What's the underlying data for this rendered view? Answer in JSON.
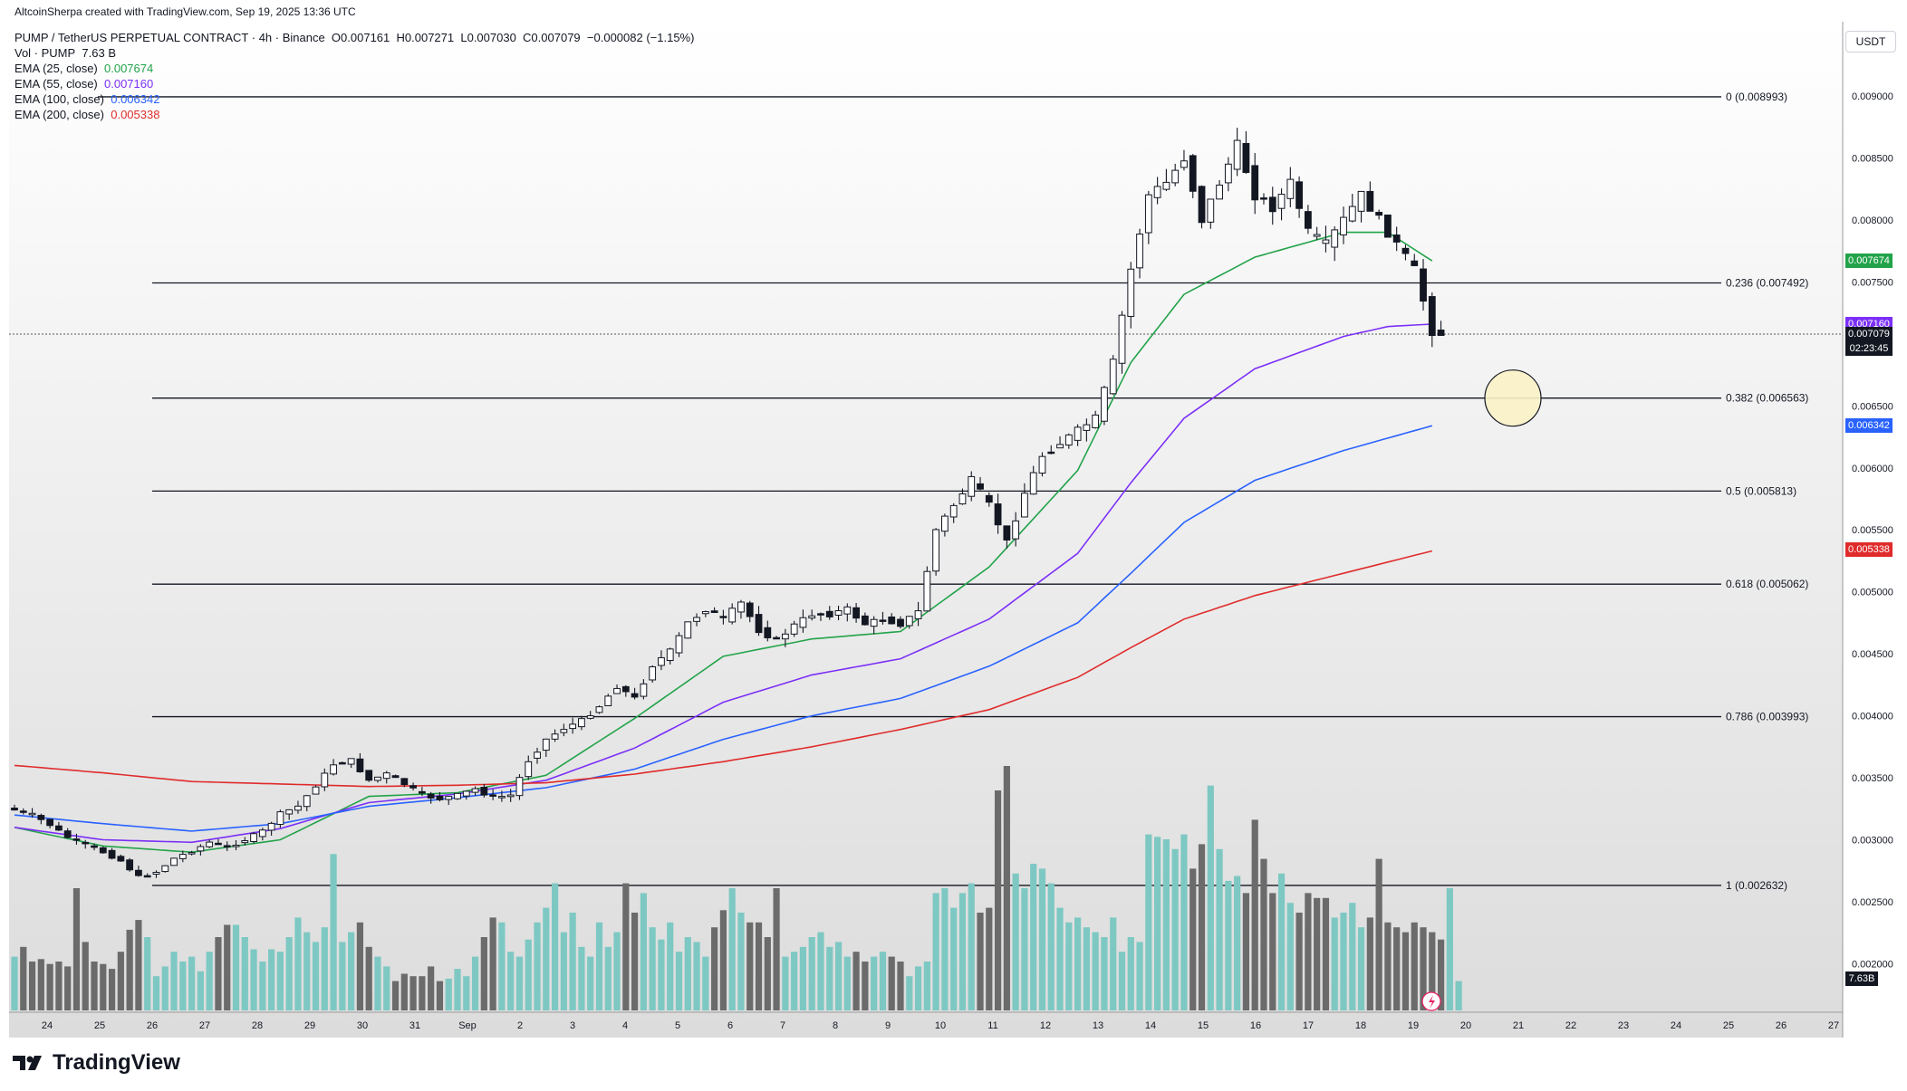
{
  "header": {
    "credit": "AltcoinSherpa created with TradingView.com, Sep 19, 2025 13:36 UTC",
    "symbol": "PUMP / TetherUS PERPETUAL CONTRACT · 4h · Binance",
    "open": "O0.007161",
    "high": "H0.007271",
    "low": "L0.007030",
    "close": "C0.007079",
    "change": "−0.000082 (−1.15%)",
    "volume_label": "Vol · PUMP",
    "volume_value": "7.63 B"
  },
  "indicators": [
    {
      "label": "EMA (25, close)",
      "value": "0.007674",
      "color": "#22a34a"
    },
    {
      "label": "EMA (55, close)",
      "value": "0.007160",
      "color": "#7b2ff7"
    },
    {
      "label": "EMA (100, close)",
      "value": "0.006342",
      "color": "#2962ff"
    },
    {
      "label": "EMA (200, close)",
      "value": "0.005338",
      "color": "#e02b2b"
    }
  ],
  "axis": {
    "currency": "USDT",
    "countdown": "02:23:45",
    "volume_tag": "7.63B"
  },
  "brand": {
    "name": "TradingView"
  },
  "chart_data": {
    "type": "candlestick",
    "ylim": [
      0.0023,
      0.0092
    ],
    "y_ticks": [
      "0.009000",
      "0.008500",
      "0.008000",
      "0.007500",
      "0.006500",
      "0.006000",
      "0.005500",
      "0.005000",
      "0.004500",
      "0.004000",
      "0.003500",
      "0.003000",
      "0.002500",
      "0.002000"
    ],
    "x_ticks": [
      "24",
      "25",
      "26",
      "27",
      "28",
      "29",
      "30",
      "31",
      "Sep",
      "2",
      "3",
      "4",
      "5",
      "6",
      "7",
      "8",
      "9",
      "10",
      "11",
      "12",
      "13",
      "14",
      "15",
      "16",
      "17",
      "18",
      "19",
      "20",
      "21",
      "22",
      "23",
      "24",
      "25",
      "26",
      "27"
    ],
    "fib_levels": [
      {
        "label": "0 (0.008993)",
        "price": 0.008993
      },
      {
        "label": "0.236 (0.007492)",
        "price": 0.007492
      },
      {
        "label": "0.382 (0.006563)",
        "price": 0.006563
      },
      {
        "label": "0.5 (0.005813)",
        "price": 0.005813
      },
      {
        "label": "0.618 (0.005062)",
        "price": 0.005062
      },
      {
        "label": "0.786 (0.003993)",
        "price": 0.003993
      },
      {
        "label": "1 (0.002632)",
        "price": 0.002632
      }
    ],
    "last_price": 0.007079,
    "price_tags": [
      {
        "price": 0.007674,
        "label": "0.007674",
        "color": "#22a34a"
      },
      {
        "price": 0.00716,
        "label": "0.007160",
        "color": "#7b2ff7"
      },
      {
        "price": 0.007079,
        "label": "0.007079",
        "color": "#131722"
      },
      {
        "price": 0.006342,
        "label": "0.006342",
        "color": "#2962ff"
      },
      {
        "price": 0.005338,
        "label": "0.005338",
        "color": "#e02b2b"
      }
    ],
    "target_circle_price": 0.006563,
    "price_keyframes": [
      [
        0,
        0.00324
      ],
      [
        2,
        0.0032
      ],
      [
        4,
        0.00312
      ],
      [
        6,
        0.00302
      ],
      [
        8,
        0.00296
      ],
      [
        10,
        0.0029
      ],
      [
        12,
        0.00283
      ],
      [
        14,
        0.0027
      ],
      [
        16,
        0.00274
      ],
      [
        18,
        0.00285
      ],
      [
        20,
        0.00291
      ],
      [
        22,
        0.00298
      ],
      [
        24,
        0.00294
      ],
      [
        26,
        0.003
      ],
      [
        28,
        0.00307
      ],
      [
        30,
        0.00321
      ],
      [
        32,
        0.00327
      ],
      [
        34,
        0.00344
      ],
      [
        36,
        0.00361
      ],
      [
        38,
        0.00364
      ],
      [
        40,
        0.00348
      ],
      [
        42,
        0.00353
      ],
      [
        44,
        0.00345
      ],
      [
        46,
        0.00336
      ],
      [
        48,
        0.00333
      ],
      [
        50,
        0.00336
      ],
      [
        52,
        0.00341
      ],
      [
        54,
        0.00334
      ],
      [
        56,
        0.00336
      ],
      [
        58,
        0.00364
      ],
      [
        60,
        0.00381
      ],
      [
        62,
        0.0039
      ],
      [
        64,
        0.00396
      ],
      [
        66,
        0.00408
      ],
      [
        68,
        0.00424
      ],
      [
        70,
        0.00414
      ],
      [
        72,
        0.00441
      ],
      [
        74,
        0.00452
      ],
      [
        76,
        0.00475
      ],
      [
        78,
        0.00486
      ],
      [
        80,
        0.00478
      ],
      [
        82,
        0.00491
      ],
      [
        84,
        0.00469
      ],
      [
        86,
        0.00461
      ],
      [
        88,
        0.00473
      ],
      [
        90,
        0.00482
      ],
      [
        92,
        0.00482
      ],
      [
        94,
        0.00486
      ],
      [
        96,
        0.00474
      ],
      [
        98,
        0.00478
      ],
      [
        100,
        0.00474
      ],
      [
        102,
        0.00484
      ],
      [
        104,
        0.0055
      ],
      [
        106,
        0.0057
      ],
      [
        108,
        0.0059
      ],
      [
        110,
        0.0057
      ],
      [
        112,
        0.0054
      ],
      [
        114,
        0.0058
      ],
      [
        116,
        0.0061
      ],
      [
        118,
        0.0062
      ],
      [
        120,
        0.0063
      ],
      [
        122,
        0.0064
      ],
      [
        124,
        0.00685
      ],
      [
        126,
        0.0076
      ],
      [
        128,
        0.0082
      ],
      [
        130,
        0.0083
      ],
      [
        132,
        0.0085
      ],
      [
        134,
        0.008
      ],
      [
        136,
        0.0083
      ],
      [
        138,
        0.0086
      ],
      [
        140,
        0.0082
      ],
      [
        142,
        0.0081
      ],
      [
        144,
        0.0083
      ],
      [
        146,
        0.0079
      ],
      [
        148,
        0.0078
      ],
      [
        150,
        0.008
      ],
      [
        152,
        0.0082
      ],
      [
        154,
        0.008
      ],
      [
        156,
        0.0078
      ],
      [
        158,
        0.0076
      ],
      [
        160,
        0.0071
      ],
      [
        161,
        0.00708
      ]
    ],
    "ema_series": [
      {
        "name": "EMA (25, close)",
        "color": "#22a34a",
        "points": [
          [
            0,
            0.0031
          ],
          [
            10,
            0.00295
          ],
          [
            20,
            0.0029
          ],
          [
            30,
            0.003
          ],
          [
            40,
            0.00335
          ],
          [
            50,
            0.00338
          ],
          [
            60,
            0.00352
          ],
          [
            70,
            0.00398
          ],
          [
            80,
            0.00448
          ],
          [
            90,
            0.00462
          ],
          [
            100,
            0.00468
          ],
          [
            110,
            0.0052
          ],
          [
            120,
            0.00598
          ],
          [
            126,
            0.00685
          ],
          [
            132,
            0.0074
          ],
          [
            140,
            0.0077
          ],
          [
            145,
            0.0078
          ],
          [
            150,
            0.0079
          ],
          [
            155,
            0.0079
          ],
          [
            160,
            0.00767
          ]
        ]
      },
      {
        "name": "EMA (55, close)",
        "color": "#7b2ff7",
        "points": [
          [
            0,
            0.0031
          ],
          [
            10,
            0.003
          ],
          [
            20,
            0.00298
          ],
          [
            30,
            0.00309
          ],
          [
            40,
            0.0033
          ],
          [
            50,
            0.00337
          ],
          [
            60,
            0.00348
          ],
          [
            70,
            0.00374
          ],
          [
            80,
            0.00411
          ],
          [
            90,
            0.00433
          ],
          [
            100,
            0.00446
          ],
          [
            110,
            0.00478
          ],
          [
            120,
            0.00531
          ],
          [
            126,
            0.00588
          ],
          [
            132,
            0.0064
          ],
          [
            140,
            0.0068
          ],
          [
            150,
            0.00706
          ],
          [
            155,
            0.00714
          ],
          [
            160,
            0.00716
          ]
        ]
      },
      {
        "name": "EMA (100, close)",
        "color": "#2962ff",
        "points": [
          [
            0,
            0.0032
          ],
          [
            10,
            0.00313
          ],
          [
            20,
            0.00307
          ],
          [
            30,
            0.00313
          ],
          [
            40,
            0.00327
          ],
          [
            50,
            0.00334
          ],
          [
            60,
            0.00342
          ],
          [
            70,
            0.00357
          ],
          [
            80,
            0.00381
          ],
          [
            90,
            0.004
          ],
          [
            100,
            0.00414
          ],
          [
            110,
            0.0044
          ],
          [
            120,
            0.00475
          ],
          [
            126,
            0.00515
          ],
          [
            132,
            0.00556
          ],
          [
            140,
            0.0059
          ],
          [
            150,
            0.00614
          ],
          [
            160,
            0.00634
          ]
        ]
      },
      {
        "name": "EMA (200, close)",
        "color": "#e02b2b",
        "points": [
          [
            0,
            0.0036
          ],
          [
            10,
            0.00354
          ],
          [
            20,
            0.00347
          ],
          [
            30,
            0.00345
          ],
          [
            40,
            0.00343
          ],
          [
            50,
            0.00344
          ],
          [
            60,
            0.00346
          ],
          [
            70,
            0.00353
          ],
          [
            80,
            0.00363
          ],
          [
            90,
            0.00375
          ],
          [
            100,
            0.00389
          ],
          [
            110,
            0.00405
          ],
          [
            120,
            0.00431
          ],
          [
            126,
            0.00455
          ],
          [
            132,
            0.00478
          ],
          [
            140,
            0.00497
          ],
          [
            150,
            0.00515
          ],
          [
            160,
            0.00533
          ]
        ]
      }
    ],
    "volume_heights": [
      0.22,
      0.26,
      0.2,
      0.21,
      0.19,
      0.2,
      0.18,
      0.5,
      0.28,
      0.2,
      0.19,
      0.17,
      0.24,
      0.33,
      0.37,
      0.3,
      0.14,
      0.18,
      0.24,
      0.2,
      0.22,
      0.16,
      0.24,
      0.3,
      0.35,
      0.35,
      0.3,
      0.25,
      0.2,
      0.25,
      0.24,
      0.3,
      0.38,
      0.32,
      0.28,
      0.34,
      0.64,
      0.28,
      0.32,
      0.36,
      0.26,
      0.22,
      0.18,
      0.12,
      0.15,
      0.14,
      0.14,
      0.18,
      0.12,
      0.13,
      0.17,
      0.14,
      0.22,
      0.3,
      0.38,
      0.36,
      0.24,
      0.22,
      0.29,
      0.36,
      0.42,
      0.52,
      0.32,
      0.4,
      0.26,
      0.22,
      0.36,
      0.26,
      0.32,
      0.52,
      0.4,
      0.48,
      0.34,
      0.29,
      0.36,
      0.24,
      0.3,
      0.28,
      0.22,
      0.34,
      0.41,
      0.5,
      0.4,
      0.36,
      0.36,
      0.3,
      0.5,
      0.22,
      0.24,
      0.26,
      0.3,
      0.32,
      0.26,
      0.28,
      0.22,
      0.24,
      0.2,
      0.22,
      0.24,
      0.22,
      0.2,
      0.14,
      0.18,
      0.2,
      0.48,
      0.5,
      0.42,
      0.48,
      0.52,
      0.4,
      0.42,
      0.9,
      1.0,
      0.56,
      0.5,
      0.6,
      0.58,
      0.52,
      0.42,
      0.36,
      0.38,
      0.34,
      0.32,
      0.3,
      0.38,
      0.24,
      0.3,
      0.28,
      0.72,
      0.71,
      0.7,
      0.66,
      0.72,
      0.58,
      0.68,
      0.92,
      0.66,
      0.53,
      0.55,
      0.48,
      0.78,
      0.62,
      0.48,
      0.56,
      0.44,
      0.4,
      0.48,
      0.46,
      0.46,
      0.38,
      0.4,
      0.44,
      0.34,
      0.38,
      0.62,
      0.36,
      0.34,
      0.32,
      0.36,
      0.34,
      0.32,
      0.29,
      0.5,
      0.12
    ]
  }
}
